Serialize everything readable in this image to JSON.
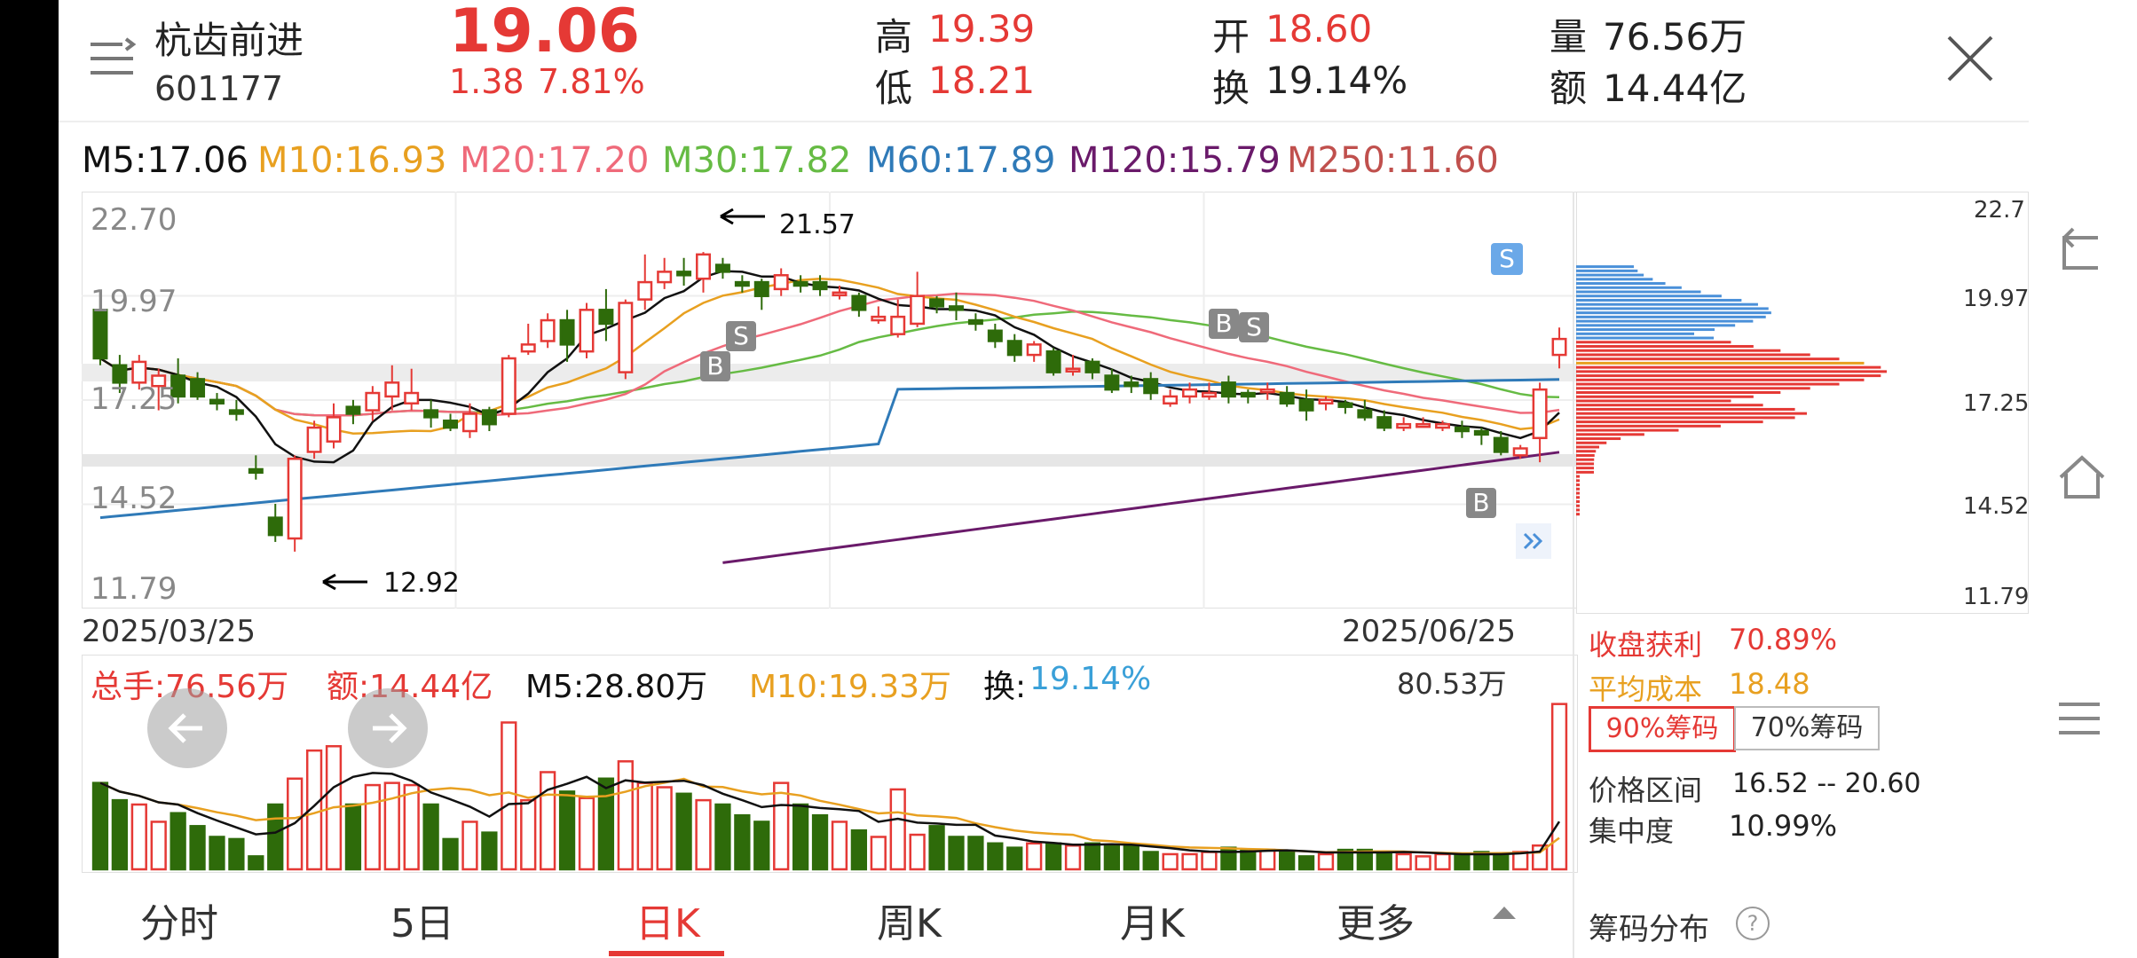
{
  "header": {
    "name": "杭齿前进",
    "code": "601177",
    "price": "19.06",
    "change": "1.38",
    "change_pct": "7.81%",
    "high_label": "高",
    "high": "19.39",
    "low_label": "低",
    "low": "18.21",
    "open_label": "开",
    "open": "18.60",
    "turnover_label": "换",
    "turnover": "19.14%",
    "volume_label": "量",
    "volume": "76.56万",
    "amount_label": "额",
    "amount": "14.44亿"
  },
  "ma": {
    "m5": "M5:17.06",
    "m10": "M10:16.93",
    "m20": "M20:17.20",
    "m30": "M30:17.82",
    "m60": "M60:17.89",
    "m120": "M120:15.79",
    "m250": "M250:11.60"
  },
  "colors": {
    "up": "#e53935",
    "down": "#2e6b0a",
    "m5": "#111111",
    "m10": "#e8a020",
    "m20": "#ef6a7a",
    "m30": "#66bb44",
    "m60": "#2f7ab8",
    "m120": "#6a1a6a",
    "m250": "#c0504d",
    "chip_profit": "#e53935",
    "chip_cost": "#e8a020",
    "chip_trapped": "#4a90d9"
  },
  "chart": {
    "y_ticks": [
      "22.70",
      "19.97",
      "17.25",
      "14.52",
      "11.79"
    ],
    "max_label": "21.57",
    "min_label": "12.92",
    "date_start": "2025/03/25",
    "date_end": "2025/06/25",
    "signal_b": "B",
    "signal_s": "S"
  },
  "chart_data": {
    "type": "candlestick",
    "x_range": [
      "2025/03/25",
      "2025/06/25"
    ],
    "ylim": [
      11.79,
      22.7
    ],
    "max": 21.57,
    "min": 12.92,
    "candles": [
      {
        "o": 19.9,
        "c": 18.5,
        "h": 20.2,
        "l": 18.3
      },
      {
        "o": 18.3,
        "c": 17.8,
        "h": 18.6,
        "l": 17.5
      },
      {
        "o": 17.8,
        "c": 18.4,
        "h": 18.6,
        "l": 17.6
      },
      {
        "o": 17.7,
        "c": 18.0,
        "h": 18.2,
        "l": 17.0
      },
      {
        "o": 18.0,
        "c": 17.4,
        "h": 18.5,
        "l": 17.2
      },
      {
        "o": 17.9,
        "c": 17.4,
        "h": 18.1,
        "l": 17.3
      },
      {
        "o": 17.3,
        "c": 17.2,
        "h": 17.5,
        "l": 17.0
      },
      {
        "o": 17.0,
        "c": 16.9,
        "h": 17.3,
        "l": 16.7
      },
      {
        "o": 15.3,
        "c": 15.2,
        "h": 15.7,
        "l": 15.0
      },
      {
        "o": 13.9,
        "c": 13.4,
        "h": 14.3,
        "l": 13.2
      },
      {
        "o": 13.3,
        "c": 15.6,
        "h": 15.7,
        "l": 12.92
      },
      {
        "o": 15.8,
        "c": 16.5,
        "h": 16.7,
        "l": 15.6
      },
      {
        "o": 16.1,
        "c": 16.8,
        "h": 17.2,
        "l": 15.9
      },
      {
        "o": 17.1,
        "c": 16.9,
        "h": 17.3,
        "l": 16.6
      },
      {
        "o": 17.0,
        "c": 17.5,
        "h": 17.7,
        "l": 16.7
      },
      {
        "o": 17.4,
        "c": 17.8,
        "h": 18.3,
        "l": 17.0
      },
      {
        "o": 17.2,
        "c": 17.5,
        "h": 18.2,
        "l": 17.0
      },
      {
        "o": 17.0,
        "c": 16.8,
        "h": 17.3,
        "l": 16.5
      },
      {
        "o": 16.7,
        "c": 16.5,
        "h": 16.9,
        "l": 16.4
      },
      {
        "o": 16.4,
        "c": 16.9,
        "h": 17.2,
        "l": 16.2
      },
      {
        "o": 17.0,
        "c": 16.6,
        "h": 17.1,
        "l": 16.4
      },
      {
        "o": 16.9,
        "c": 18.5,
        "h": 18.6,
        "l": 16.8
      },
      {
        "o": 18.7,
        "c": 18.9,
        "h": 19.5,
        "l": 18.6
      },
      {
        "o": 19.0,
        "c": 19.6,
        "h": 19.8,
        "l": 18.8
      },
      {
        "o": 19.6,
        "c": 18.9,
        "h": 19.9,
        "l": 18.4
      },
      {
        "o": 18.7,
        "c": 19.9,
        "h": 20.1,
        "l": 18.5
      },
      {
        "o": 19.9,
        "c": 19.5,
        "h": 20.5,
        "l": 19.0
      },
      {
        "o": 18.1,
        "c": 20.1,
        "h": 20.2,
        "l": 17.9
      },
      {
        "o": 20.2,
        "c": 20.7,
        "h": 21.5,
        "l": 19.9
      },
      {
        "o": 20.7,
        "c": 21.0,
        "h": 21.4,
        "l": 20.5
      },
      {
        "o": 21.0,
        "c": 20.9,
        "h": 21.4,
        "l": 20.6
      },
      {
        "o": 20.8,
        "c": 21.5,
        "h": 21.57,
        "l": 20.4
      },
      {
        "o": 21.2,
        "c": 21.0,
        "h": 21.4,
        "l": 20.8
      },
      {
        "o": 20.7,
        "c": 20.6,
        "h": 20.9,
        "l": 20.4
      },
      {
        "o": 20.7,
        "c": 20.3,
        "h": 20.8,
        "l": 19.9
      },
      {
        "o": 20.5,
        "c": 20.9,
        "h": 21.1,
        "l": 20.3
      },
      {
        "o": 20.7,
        "c": 20.6,
        "h": 20.9,
        "l": 20.4
      },
      {
        "o": 20.7,
        "c": 20.5,
        "h": 20.9,
        "l": 20.3
      },
      {
        "o": 20.4,
        "c": 20.4,
        "h": 20.6,
        "l": 20.2
      },
      {
        "o": 20.3,
        "c": 19.9,
        "h": 20.4,
        "l": 19.7
      },
      {
        "o": 19.6,
        "c": 19.7,
        "h": 20.0,
        "l": 19.5
      },
      {
        "o": 19.2,
        "c": 19.7,
        "h": 20.2,
        "l": 19.1
      },
      {
        "o": 19.5,
        "c": 20.3,
        "h": 21.0,
        "l": 19.4
      },
      {
        "o": 20.2,
        "c": 20.0,
        "h": 20.3,
        "l": 19.8
      },
      {
        "o": 20.0,
        "c": 19.9,
        "h": 20.4,
        "l": 19.6
      },
      {
        "o": 19.6,
        "c": 19.5,
        "h": 19.8,
        "l": 19.3
      },
      {
        "o": 19.3,
        "c": 19.0,
        "h": 19.5,
        "l": 18.8
      },
      {
        "o": 19.0,
        "c": 18.6,
        "h": 19.2,
        "l": 18.4
      },
      {
        "o": 18.6,
        "c": 18.9,
        "h": 19.0,
        "l": 18.4
      },
      {
        "o": 18.7,
        "c": 18.1,
        "h": 18.8,
        "l": 18.0
      },
      {
        "o": 18.2,
        "c": 18.2,
        "h": 18.6,
        "l": 18.0
      },
      {
        "o": 18.4,
        "c": 18.1,
        "h": 18.5,
        "l": 17.9
      },
      {
        "o": 18.0,
        "c": 17.6,
        "h": 18.2,
        "l": 17.5
      },
      {
        "o": 17.8,
        "c": 17.7,
        "h": 18.0,
        "l": 17.5
      },
      {
        "o": 17.9,
        "c": 17.5,
        "h": 18.1,
        "l": 17.3
      },
      {
        "o": 17.2,
        "c": 17.4,
        "h": 17.6,
        "l": 17.1
      },
      {
        "o": 17.4,
        "c": 17.6,
        "h": 17.8,
        "l": 17.2
      },
      {
        "o": 17.4,
        "c": 17.5,
        "h": 17.8,
        "l": 17.3
      },
      {
        "o": 17.8,
        "c": 17.4,
        "h": 18.0,
        "l": 17.2
      },
      {
        "o": 17.5,
        "c": 17.4,
        "h": 17.6,
        "l": 17.2
      },
      {
        "o": 17.6,
        "c": 17.6,
        "h": 17.8,
        "l": 17.3
      },
      {
        "o": 17.5,
        "c": 17.2,
        "h": 17.7,
        "l": 17.1
      },
      {
        "o": 17.3,
        "c": 17.0,
        "h": 17.6,
        "l": 16.7
      },
      {
        "o": 17.2,
        "c": 17.3,
        "h": 17.4,
        "l": 17.0
      },
      {
        "o": 17.2,
        "c": 17.1,
        "h": 17.3,
        "l": 16.9
      },
      {
        "o": 17.0,
        "c": 16.8,
        "h": 17.3,
        "l": 16.7
      },
      {
        "o": 16.8,
        "c": 16.5,
        "h": 17.0,
        "l": 16.4
      },
      {
        "o": 16.5,
        "c": 16.6,
        "h": 16.8,
        "l": 16.4
      },
      {
        "o": 16.6,
        "c": 16.6,
        "h": 16.8,
        "l": 16.5
      },
      {
        "o": 16.5,
        "c": 16.6,
        "h": 16.7,
        "l": 16.4
      },
      {
        "o": 16.5,
        "c": 16.4,
        "h": 16.7,
        "l": 16.2
      },
      {
        "o": 16.4,
        "c": 16.3,
        "h": 16.5,
        "l": 16.0
      },
      {
        "o": 16.2,
        "c": 15.8,
        "h": 16.4,
        "l": 15.7
      },
      {
        "o": 15.7,
        "c": 15.9,
        "h": 16.0,
        "l": 15.6
      },
      {
        "o": 16.2,
        "c": 17.6,
        "h": 17.8,
        "l": 15.5
      },
      {
        "o": 18.6,
        "c": 19.06,
        "h": 19.39,
        "l": 18.21
      }
    ]
  },
  "volume": {
    "total": "总手:76.56万",
    "amount": "额:14.44亿",
    "m5": "M5:28.80万",
    "m10": "M10:19.33万",
    "turnover_label": "换:",
    "turnover": "19.14%",
    "max": "80.53万"
  },
  "volume_data": {
    "unit": "万",
    "max": 80.53,
    "values": [
      40,
      32,
      30,
      22,
      26,
      20,
      15,
      14,
      6,
      30,
      42,
      55,
      57,
      30,
      39,
      40,
      39,
      30,
      14,
      22,
      17,
      68,
      32,
      45,
      36,
      33,
      42,
      50,
      40,
      38,
      35,
      32,
      30,
      25,
      22,
      40,
      30,
      25,
      22,
      18,
      15,
      37,
      16,
      20,
      15,
      15,
      12,
      10,
      12,
      12,
      11,
      12,
      11,
      11,
      8,
      7,
      7,
      8,
      10,
      9,
      9,
      8,
      6,
      7,
      9,
      9,
      8,
      7,
      6,
      7,
      7,
      8,
      7,
      8,
      11,
      76.56
    ]
  },
  "side": {
    "y_ticks": [
      "22.7",
      "19.97",
      "17.25",
      "14.52",
      "11.79"
    ],
    "profit_label": "收盘获利",
    "profit": "70.89%",
    "cost_label": "平均成本",
    "cost": "18.48",
    "btn90": "90%筹码",
    "btn70": "70%筹码",
    "range_label": "价格区间",
    "range": "16.52 -- 20.60",
    "conc_label": "集中度",
    "conc": "10.99%",
    "title": "筹码分布",
    "help_icon": "?"
  },
  "tabs": {
    "t1": "分时",
    "t2": "5日",
    "t3": "日K",
    "t4": "周K",
    "t5": "月K",
    "t6": "更多"
  },
  "icons": {
    "menu": "menu-icon",
    "close": "close-icon",
    "back": "back-icon",
    "home": "home-icon",
    "nav_menu": "nav-menu-icon",
    "prev": "arrow-left-icon",
    "next": "arrow-right-icon",
    "expand": "double-chevron-right-icon"
  }
}
